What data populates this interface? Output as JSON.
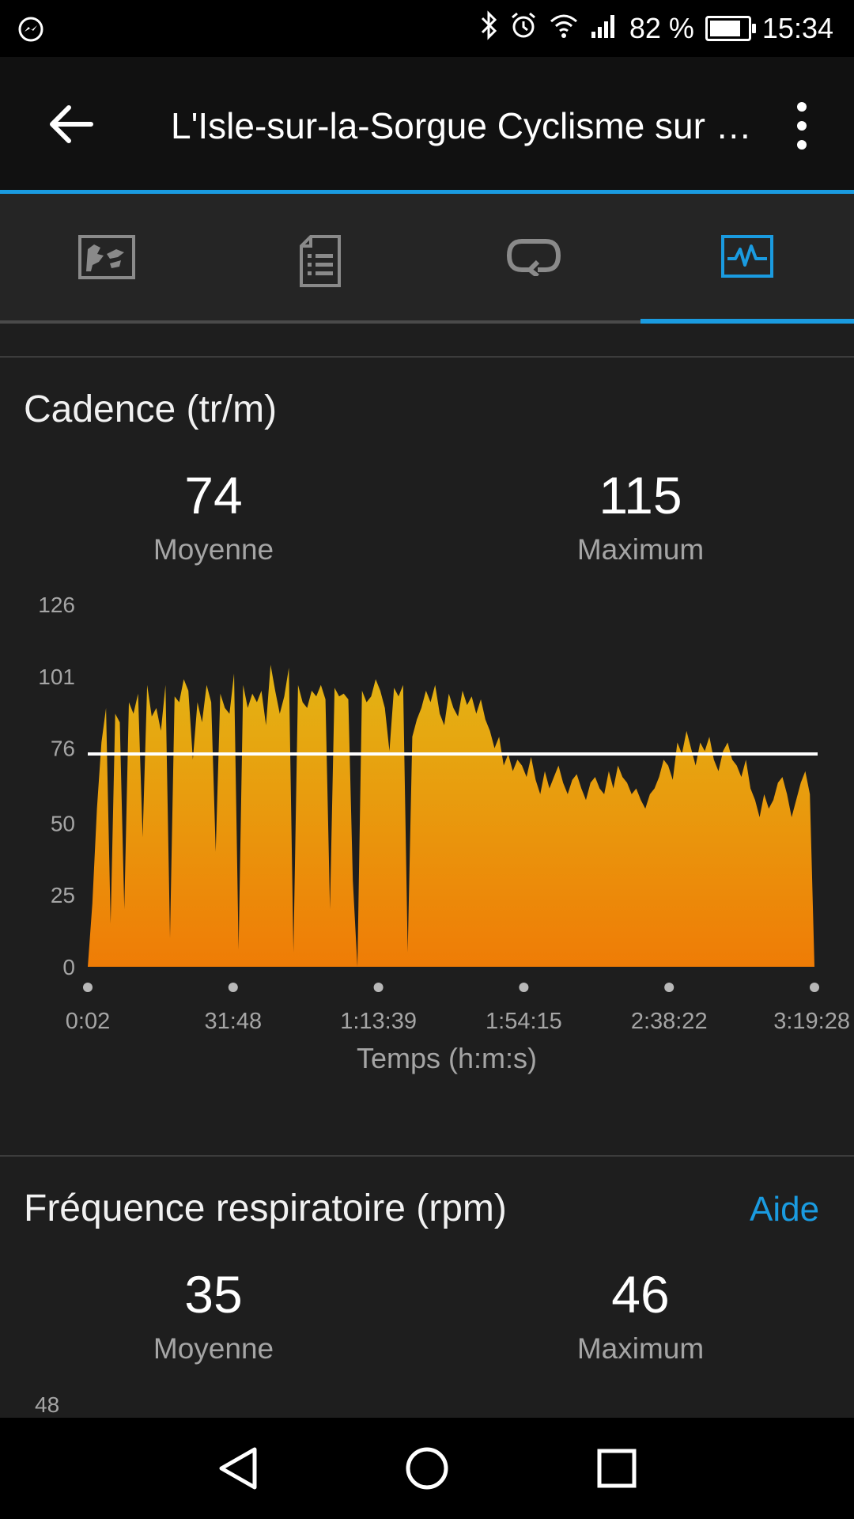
{
  "status_bar": {
    "battery_percent": "82 %",
    "battery_level": 0.82,
    "time": "15:34",
    "icons": [
      "messenger-icon",
      "bluetooth-icon",
      "alarm-icon",
      "wifi-icon",
      "signal-icon",
      "battery-icon"
    ]
  },
  "app_bar": {
    "title": "L'Isle-sur-la-Sorgue Cyclisme sur route",
    "accent_color": "#1a9be0"
  },
  "tabs": [
    {
      "icon": "map-icon",
      "active": false
    },
    {
      "icon": "document-icon",
      "active": false
    },
    {
      "icon": "laps-icon",
      "active": false
    },
    {
      "icon": "chart-icon",
      "active": true
    }
  ],
  "cadence": {
    "title": "Cadence (tr/m)",
    "avg_value": "74",
    "avg_label": "Moyenne",
    "max_value": "115",
    "max_label": "Maximum"
  },
  "respiration": {
    "title": "Fréquence respiratoire (rpm)",
    "help_label": "Aide",
    "avg_value": "35",
    "avg_label": "Moyenne",
    "max_value": "46",
    "max_label": "Maximum",
    "y_top_label": "48"
  },
  "chart_data": {
    "type": "area",
    "ylim": [
      0,
      126
    ],
    "y_ticks": [
      "0",
      "25",
      "50",
      "76",
      "101",
      "126"
    ],
    "x_ticks": [
      "0:02",
      "31:48",
      "1:13:39",
      "1:54:15",
      "2:38:22",
      "3:19:28"
    ],
    "xlabel": "Temps (h:m:s)",
    "ylabel": "",
    "average_line": 74,
    "grid": false,
    "fill_colors": [
      "#e3b514",
      "#ef7c06"
    ],
    "values": [
      0,
      22,
      55,
      78,
      90,
      15,
      88,
      85,
      20,
      92,
      88,
      95,
      45,
      98,
      87,
      90,
      82,
      98,
      10,
      94,
      92,
      100,
      96,
      72,
      92,
      85,
      98,
      92,
      40,
      95,
      90,
      88,
      102,
      6,
      98,
      90,
      95,
      92,
      96,
      84,
      105,
      96,
      88,
      94,
      104,
      5,
      98,
      92,
      90,
      96,
      94,
      98,
      93,
      20,
      97,
      94,
      95,
      93,
      30,
      0,
      96,
      92,
      94,
      100,
      96,
      90,
      75,
      97,
      94,
      98,
      5,
      80,
      86,
      90,
      96,
      92,
      98,
      88,
      84,
      95,
      90,
      87,
      96,
      91,
      94,
      88,
      93,
      86,
      82,
      76,
      80,
      70,
      74,
      68,
      72,
      70,
      66,
      73,
      65,
      60,
      68,
      62,
      66,
      70,
      64,
      60,
      65,
      67,
      62,
      58,
      64,
      66,
      62,
      60,
      68,
      62,
      70,
      66,
      64,
      60,
      62,
      58,
      55,
      60,
      62,
      66,
      72,
      70,
      65,
      78,
      74,
      82,
      76,
      70,
      78,
      75,
      80,
      72,
      68,
      75,
      78,
      72,
      70,
      66,
      72,
      62,
      58,
      52,
      60,
      55,
      58,
      64,
      66,
      60,
      52,
      58,
      64,
      68,
      60,
      0
    ]
  }
}
